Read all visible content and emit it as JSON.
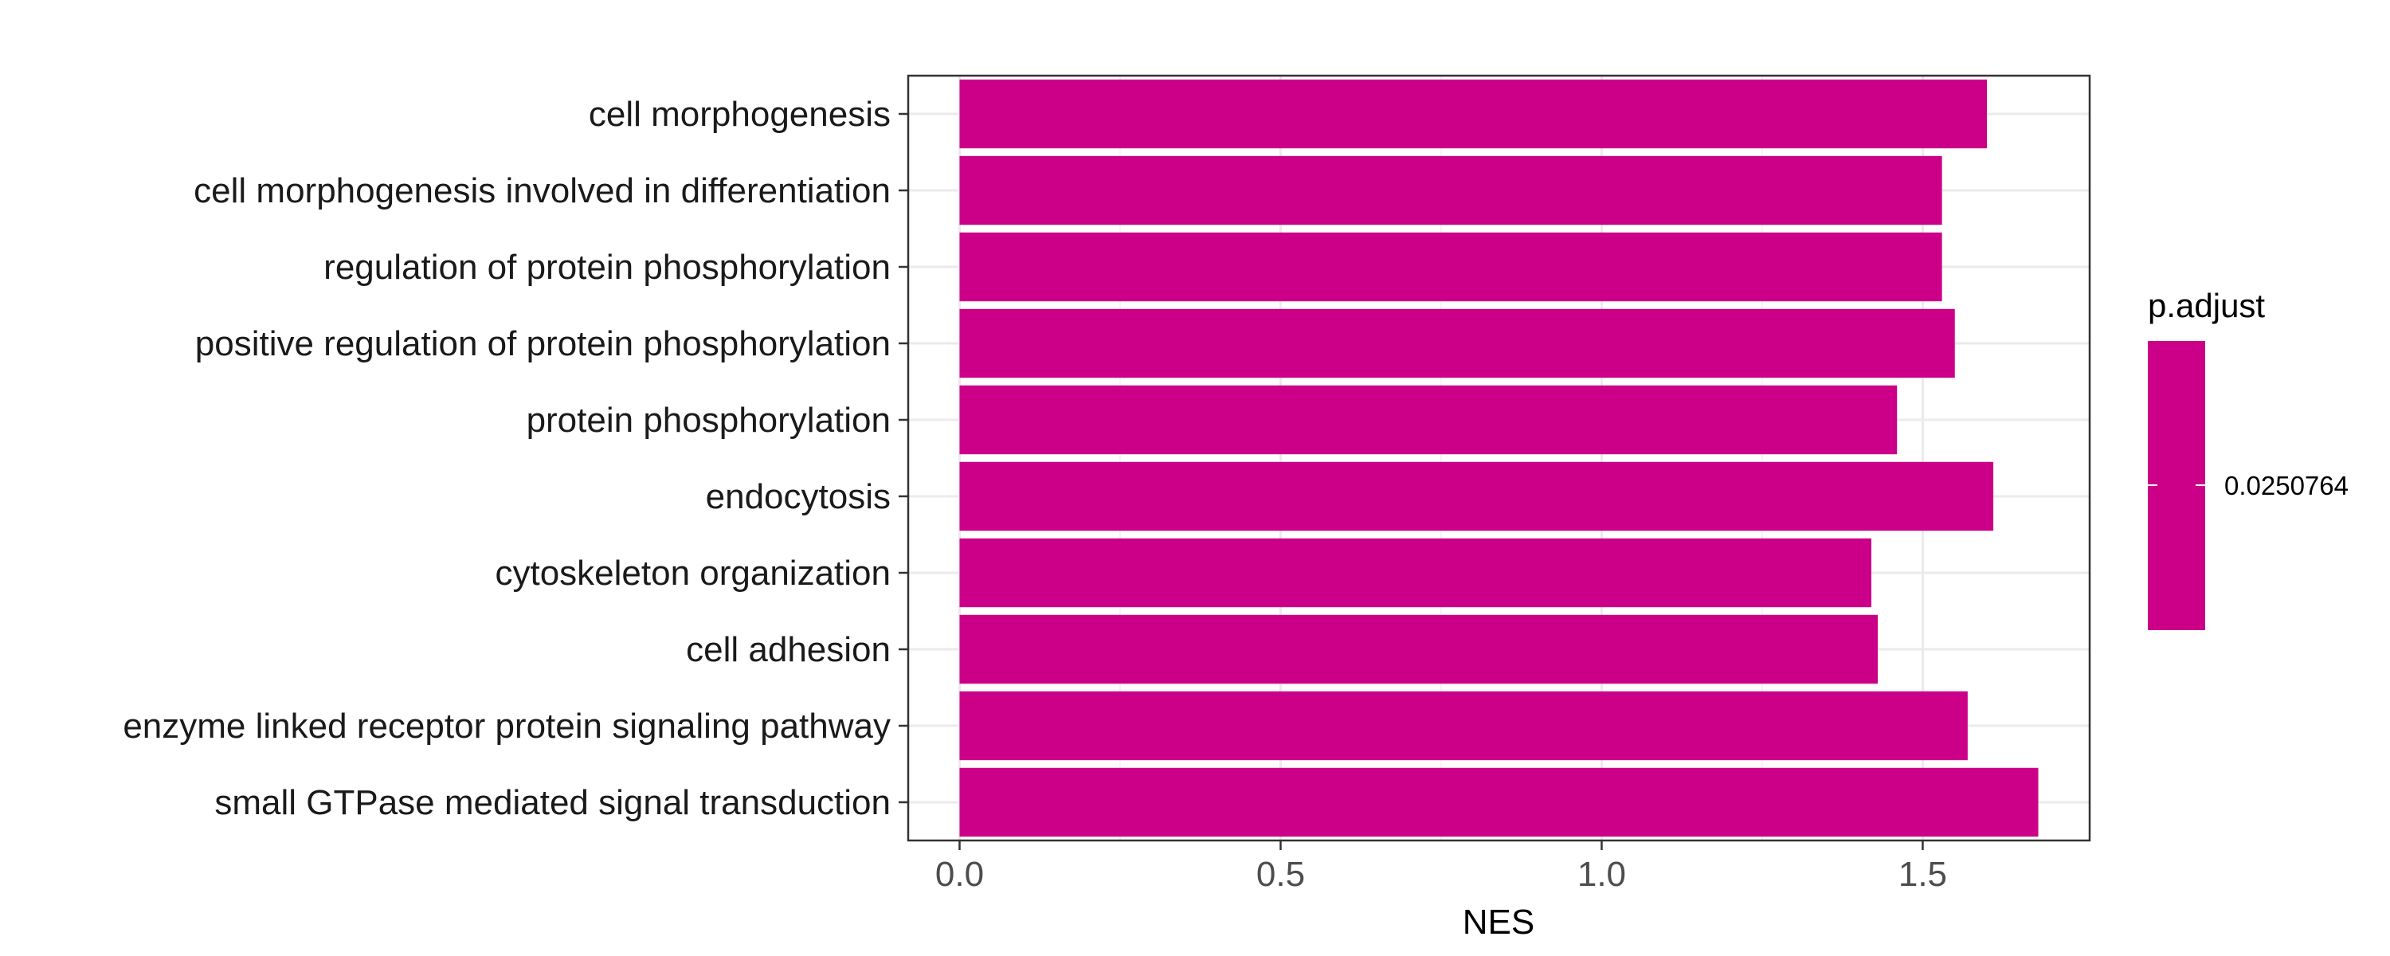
{
  "chart_data": {
    "type": "bar",
    "orientation": "horizontal",
    "categories": [
      "cell morphogenesis",
      "cell morphogenesis involved in differentiation",
      "regulation of protein phosphorylation",
      "positive regulation of protein phosphorylation",
      "protein phosphorylation",
      "endocytosis",
      "cytoskeleton organization",
      "cell adhesion",
      "enzyme linked receptor protein signaling pathway",
      "small GTPase mediated signal transduction"
    ],
    "values": [
      1.6,
      1.53,
      1.53,
      1.55,
      1.46,
      1.61,
      1.42,
      1.43,
      1.57,
      1.68
    ],
    "xlabel": "NES",
    "ylabel": "",
    "xlim": [
      -0.08,
      1.76
    ],
    "xticks": [
      0.0,
      0.5,
      1.0,
      1.5
    ],
    "xtick_labels": [
      "0.0",
      "0.5",
      "1.0",
      "1.5"
    ],
    "bar_color": "#cc0088",
    "grid": true,
    "legend": {
      "title": "p.adjust",
      "position": "right",
      "labels": [
        "0.0250764"
      ],
      "color": "#cc0088"
    }
  }
}
